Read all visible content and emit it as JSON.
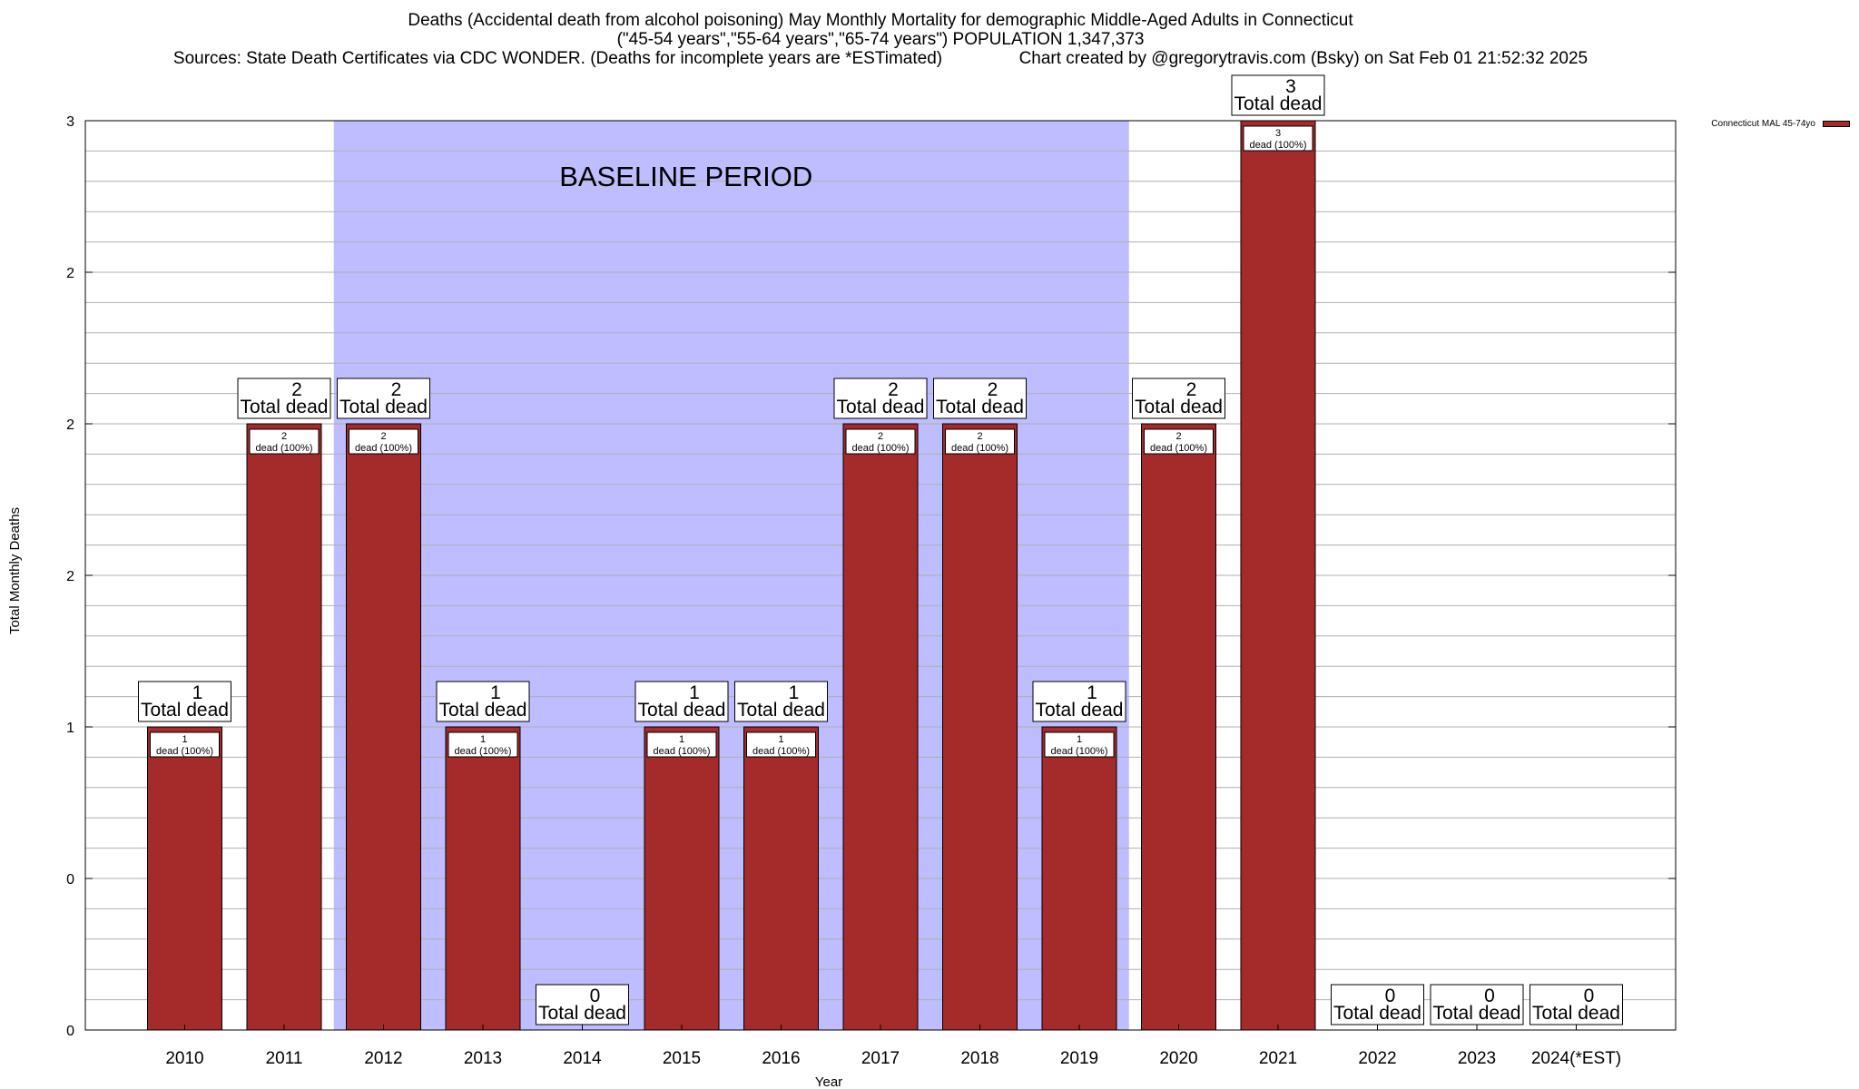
{
  "chart_data": {
    "type": "bar",
    "title": "Deaths (Accidental death from alcohol poisoning) May Monthly Mortality for demographic Middle-Aged Adults in Connecticut",
    "subtitle": "(\"45-54 years\",\"55-64 years\",\"65-74 years\") POPULATION 1,347,373",
    "sources": "Sources: State Death Certificates via CDC WONDER. (Deaths for incomplete years are *ESTimated)",
    "credit": "Chart created by @gregorytravis.com (Bsky) on Sat Feb 01 21:52:32 2025",
    "xlabel": "Year",
    "ylabel": "Total Monthly Deaths",
    "ylim": [
      0,
      3
    ],
    "y_tick_labels": [
      "0",
      "0",
      "1",
      "2",
      "2",
      "2",
      "3"
    ],
    "categories": [
      "2010",
      "2011",
      "2012",
      "2013",
      "2014",
      "2015",
      "2016",
      "2017",
      "2018",
      "2019",
      "2020",
      "2021",
      "2022",
      "2023",
      "2024(*EST)"
    ],
    "series": [
      {
        "name": "Connecticut MAL 45-74yo",
        "color": "#a52a2a",
        "values": [
          1,
          2,
          2,
          1,
          0,
          1,
          1,
          2,
          2,
          1,
          2,
          3,
          0,
          0,
          0
        ]
      }
    ],
    "total_label_text": "Total dead",
    "inner_label_text": "dead (100%)",
    "baseline": {
      "label": "BASELINE PERIOD",
      "start_category": "2012",
      "end_category": "2019",
      "color": "#bdbdff"
    },
    "grid": true,
    "legend_position": "top-right"
  }
}
